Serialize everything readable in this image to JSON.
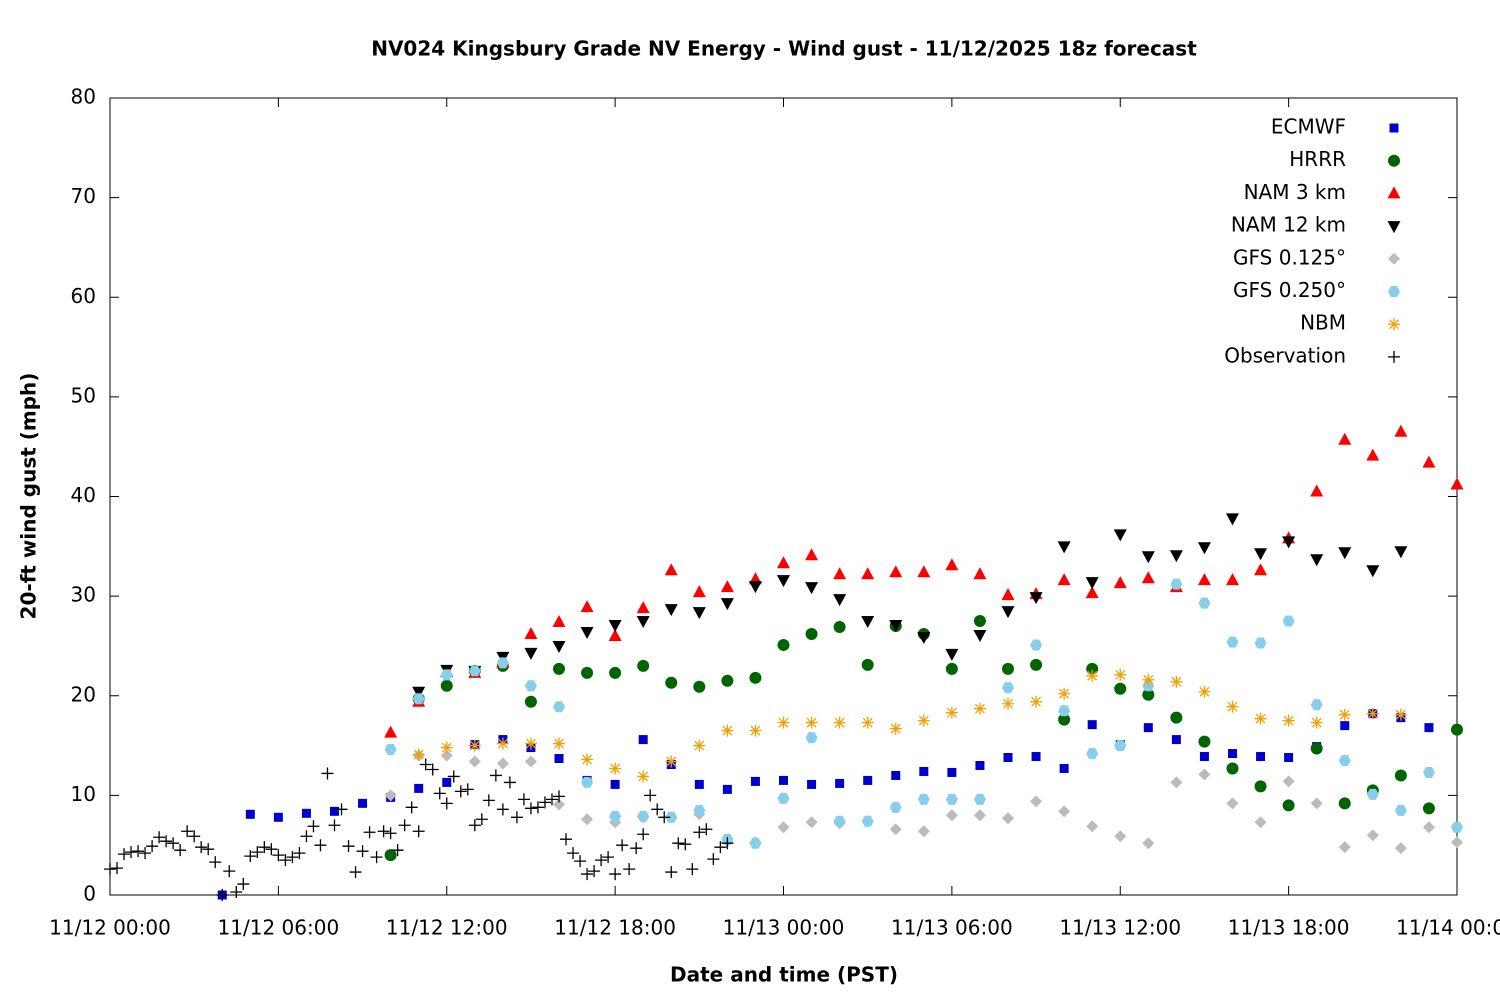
{
  "chart_data": {
    "type": "scatter",
    "title": "NV024 Kingsbury Grade NV Energy - Wind gust - 11/12/2025 18z forecast",
    "xlabel": "Date and time (PST)",
    "ylabel": "20-ft wind gust (mph)",
    "xlim": [
      0,
      48
    ],
    "xticks": [
      {
        "value": 0,
        "label": "11/12 00:00"
      },
      {
        "value": 6,
        "label": "11/12 06:00"
      },
      {
        "value": 12,
        "label": "11/12 12:00"
      },
      {
        "value": 18,
        "label": "11/12 18:00"
      },
      {
        "value": 24,
        "label": "11/13 00:00"
      },
      {
        "value": 30,
        "label": "11/13 06:00"
      },
      {
        "value": 36,
        "label": "11/13 12:00"
      },
      {
        "value": 42,
        "label": "11/13 18:00"
      },
      {
        "value": 48,
        "label": "11/14 00:00"
      }
    ],
    "ylim": [
      0,
      80
    ],
    "yticks": [
      0,
      10,
      20,
      30,
      40,
      50,
      60,
      70,
      80
    ],
    "legend": "top-right",
    "series": [
      {
        "name": "ECMWF",
        "color": "#0000cc",
        "marker": "square",
        "x": [
          4,
          5,
          6,
          7,
          8,
          9,
          10,
          11,
          12,
          13,
          14,
          15,
          16,
          17,
          18,
          19,
          20,
          21,
          22,
          23,
          24,
          25,
          26,
          27,
          28,
          29,
          30,
          31,
          32,
          33,
          34,
          35,
          36,
          37,
          38,
          39,
          40,
          41,
          42,
          43,
          44,
          45,
          46,
          47
        ],
        "values": [
          0,
          8.1,
          7.8,
          8.2,
          8.4,
          9.2,
          9.8,
          10.7,
          11.3,
          15.1,
          15.6,
          14.8,
          13.7,
          11.5,
          11.1,
          15.6,
          13.1,
          11.1,
          10.6,
          11.4,
          11.5,
          11.1,
          11.2,
          11.5,
          12.0,
          12.4,
          12.3,
          13.0,
          13.8,
          13.9,
          12.7,
          17.1,
          15.1,
          16.8,
          15.6,
          13.9,
          14.2,
          13.9,
          13.8,
          14.9,
          17.0,
          18.2,
          17.8,
          16.8
        ]
      },
      {
        "name": "HRRR",
        "color": "#006400",
        "marker": "circle",
        "x": [
          10,
          11,
          12,
          13,
          14,
          15,
          16,
          17,
          18,
          19,
          20,
          21,
          22,
          23,
          24,
          25,
          26,
          27,
          28,
          29,
          30,
          31,
          32,
          33,
          34,
          35,
          36,
          37,
          38,
          39,
          40,
          41,
          42,
          43,
          44,
          45,
          46,
          47,
          48
        ],
        "values": [
          4.0,
          19.7,
          21.0,
          22.5,
          23.0,
          19.4,
          22.7,
          22.3,
          22.3,
          23.0,
          21.3,
          20.9,
          21.5,
          21.8,
          25.1,
          26.2,
          26.9,
          23.1,
          27.0,
          26.2,
          22.7,
          27.5,
          22.7,
          23.1,
          17.6,
          22.7,
          20.7,
          20.1,
          17.8,
          15.4,
          12.7,
          10.9,
          9.0,
          14.7,
          9.2,
          10.5,
          12.0,
          8.7,
          16.6
        ]
      },
      {
        "name": "NAM 3 km",
        "color": "#ff0000",
        "marker": "triangle-up",
        "x": [
          10,
          11,
          12,
          13,
          14,
          15,
          16,
          17,
          18,
          19,
          20,
          21,
          22,
          23,
          24,
          25,
          26,
          27,
          28,
          29,
          30,
          31,
          32,
          33,
          34,
          35,
          36,
          37,
          38,
          39,
          40,
          41,
          42,
          43,
          44,
          45,
          46,
          47,
          48
        ],
        "values": [
          16.3,
          19.4,
          22.4,
          22.3,
          23.3,
          26.2,
          27.4,
          28.9,
          26.0,
          28.8,
          32.6,
          30.4,
          30.9,
          31.7,
          33.3,
          34.1,
          32.2,
          32.2,
          32.4,
          32.4,
          33.1,
          32.2,
          30.1,
          30.2,
          31.6,
          30.3,
          31.3,
          31.8,
          30.9,
          31.6,
          31.6,
          32.6,
          35.8,
          40.5,
          45.7,
          44.1,
          46.5,
          43.4,
          41.2
        ]
      },
      {
        "name": "NAM 12 km",
        "color": "#000000",
        "marker": "triangle-down",
        "x": [
          11,
          12,
          13,
          14,
          15,
          16,
          17,
          18,
          19,
          20,
          21,
          22,
          23,
          24,
          25,
          26,
          27,
          28,
          29,
          30,
          31,
          32,
          33,
          34,
          35,
          36,
          37,
          38,
          39,
          40,
          41,
          42,
          43,
          44,
          45,
          46
        ],
        "values": [
          20.4,
          22.6,
          22.5,
          23.9,
          24.3,
          25.0,
          26.4,
          27.1,
          27.5,
          28.7,
          28.4,
          29.3,
          31.0,
          31.6,
          30.9,
          29.7,
          27.5,
          27.1,
          25.9,
          24.2,
          26.1,
          28.5,
          29.9,
          35.0,
          31.4,
          36.2,
          34.0,
          34.1,
          34.9,
          37.8,
          34.3,
          35.5,
          33.7,
          34.4,
          32.6,
          34.5
        ]
      },
      {
        "name": "GFS 0.125°",
        "color": "#bbbbbb",
        "marker": "diamond",
        "x": [
          10,
          11,
          12,
          13,
          14,
          15,
          16,
          17,
          18,
          19,
          20,
          21,
          22,
          23,
          24,
          25,
          26,
          27,
          28,
          29,
          30,
          31,
          32,
          33,
          34,
          35,
          36,
          37,
          38,
          39,
          40,
          41,
          42,
          43,
          44,
          45,
          46,
          47,
          48
        ],
        "values": [
          10.0,
          14.0,
          14.0,
          13.4,
          13.2,
          13.4,
          9.1,
          7.6,
          7.3,
          7.8,
          7.8,
          8.1,
          5.4,
          5.3,
          6.8,
          7.3,
          7.2,
          7.4,
          6.6,
          6.4,
          8.0,
          8.0,
          7.7,
          9.4,
          8.4,
          6.9,
          5.9,
          5.2,
          11.3,
          12.1,
          9.2,
          7.3,
          11.4,
          9.2,
          4.8,
          6.0,
          4.7,
          6.8,
          5.3
        ]
      },
      {
        "name": "GFS 0.250°",
        "color": "#87ceeb",
        "marker": "hexagon",
        "x": [
          10,
          11,
          12,
          13,
          14,
          15,
          16,
          17,
          18,
          19,
          20,
          21,
          22,
          23,
          24,
          25,
          26,
          27,
          28,
          29,
          30,
          31,
          32,
          33,
          34,
          35,
          36,
          37,
          38,
          39,
          40,
          41,
          42,
          43,
          44,
          45,
          46,
          47,
          48
        ],
        "values": [
          14.6,
          19.7,
          22.1,
          22.5,
          23.3,
          21.0,
          18.9,
          11.3,
          7.9,
          7.9,
          7.8,
          8.5,
          5.6,
          5.2,
          9.7,
          15.8,
          7.4,
          7.4,
          8.8,
          9.6,
          9.6,
          9.6,
          20.8,
          25.1,
          18.5,
          14.2,
          15.0,
          21.0,
          31.2,
          29.3,
          25.4,
          25.3,
          27.5,
          19.1,
          13.5,
          10.1,
          8.5,
          12.3,
          6.8
        ]
      },
      {
        "name": "NBM",
        "color": "#f0a000",
        "marker": "asterisk",
        "x": [
          11,
          12,
          13,
          14,
          15,
          16,
          17,
          18,
          19,
          20,
          21,
          22,
          23,
          24,
          25,
          26,
          27,
          28,
          29,
          30,
          31,
          32,
          33,
          34,
          35,
          36,
          37,
          38,
          39,
          40,
          41,
          42,
          43,
          44,
          45,
          46
        ],
        "values": [
          14.1,
          14.8,
          15.0,
          15.2,
          15.2,
          15.2,
          13.6,
          12.7,
          11.9,
          13.4,
          15.0,
          16.5,
          16.5,
          17.3,
          17.3,
          17.3,
          17.3,
          16.7,
          17.5,
          18.3,
          18.7,
          19.2,
          19.4,
          20.2,
          22.0,
          22.1,
          21.6,
          21.4,
          20.4,
          18.9,
          17.7,
          17.5,
          17.3,
          18.1,
          18.2,
          18.1
        ]
      },
      {
        "name": "Observation",
        "color": "#000000",
        "marker": "plus",
        "x": [
          0,
          0.25,
          0.5,
          0.75,
          1,
          1.25,
          1.5,
          1.75,
          2,
          2.25,
          2.5,
          2.75,
          3,
          3.25,
          3.5,
          3.75,
          4,
          4.25,
          4.5,
          4.75,
          5,
          5.25,
          5.5,
          5.75,
          6,
          6.25,
          6.5,
          6.75,
          7,
          7.25,
          7.5,
          7.75,
          8,
          8.25,
          8.5,
          8.75,
          9,
          9.25,
          9.5,
          9.75,
          10,
          10.25,
          10.5,
          10.75,
          11,
          11.25,
          11.5,
          11.75,
          12,
          12.25,
          12.5,
          12.75,
          13,
          13.25,
          13.5,
          13.75,
          14,
          14.25,
          14.5,
          14.75,
          15,
          15.25,
          15.5,
          15.75,
          16,
          16.25,
          16.5,
          16.75,
          17,
          17.25,
          17.5,
          17.75,
          18,
          18.25,
          18.5,
          18.75,
          19,
          19.25,
          19.5,
          19.75,
          20,
          20.25,
          20.5,
          20.75,
          21,
          21.25,
          21.5,
          21.75,
          22
        ],
        "values": [
          2.6,
          2.7,
          4.1,
          4.3,
          4.4,
          4.2,
          4.9,
          5.8,
          5.4,
          5.2,
          4.5,
          6.4,
          5.9,
          4.8,
          4.6,
          3.3,
          0.0,
          2.4,
          0.3,
          1.1,
          3.9,
          4.3,
          4.8,
          4.6,
          4.0,
          3.5,
          3.8,
          4.2,
          5.9,
          6.9,
          5.0,
          12.2,
          7.0,
          8.6,
          4.9,
          2.3,
          4.4,
          6.3,
          3.8,
          6.4,
          6.2,
          4.5,
          7.0,
          8.8,
          6.4,
          13.1,
          12.6,
          10.2,
          9.2,
          11.9,
          10.4,
          10.6,
          7.0,
          7.6,
          9.5,
          12.0,
          8.6,
          11.3,
          7.8,
          9.6,
          8.7,
          8.8,
          9.3,
          9.6,
          9.9,
          5.6,
          4.2,
          3.4,
          2.1,
          2.4,
          3.5,
          3.8,
          2.1,
          5.0,
          2.6,
          4.7,
          6.1,
          10.0,
          8.6,
          7.8,
          2.3,
          5.2,
          5.1,
          2.6,
          6.3,
          6.6,
          3.6,
          4.8,
          5.2
        ]
      }
    ]
  }
}
